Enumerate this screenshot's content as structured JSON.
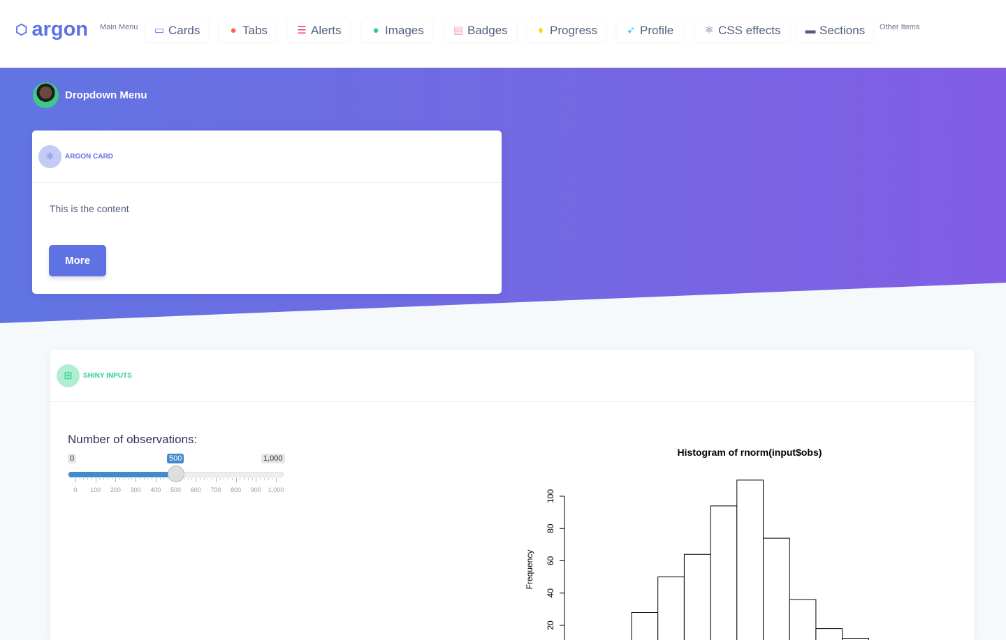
{
  "nav": {
    "brand": "argon",
    "main_menu": "Main Menu",
    "other_items": "Other Items",
    "items": [
      {
        "label": "Cards",
        "icon": "monitor-icon",
        "color": "#5e72e4"
      },
      {
        "label": "Tabs",
        "icon": "planet-icon",
        "color": "#fb6340"
      },
      {
        "label": "Alerts",
        "icon": "bullet-list-icon",
        "color": "#f5365c"
      },
      {
        "label": "Images",
        "icon": "user-circle-icon",
        "color": "#2dce89"
      },
      {
        "label": "Badges",
        "icon": "ui-04-icon",
        "color": "#f3a4b5"
      },
      {
        "label": "Progress",
        "icon": "pin-icon",
        "color": "#ffd600"
      },
      {
        "label": "Profile",
        "icon": "rocket-icon",
        "color": "#11cdef"
      },
      {
        "label": "CSS effects",
        "icon": "atom-icon",
        "color": "#525f7f"
      },
      {
        "label": "Sections",
        "icon": "credit-card-icon",
        "color": "#525f7f"
      }
    ]
  },
  "hero": {
    "dropdown": "Dropdown Menu"
  },
  "argon_card": {
    "title": "ARGON CARD",
    "content": "This is the content",
    "button": "More",
    "accent": "#5e72e4"
  },
  "shiny_card": {
    "title": "SHINY INPUTS",
    "accent": "#2dce89"
  },
  "slider": {
    "label": "Number of observations:",
    "min": "0",
    "max": "1,000",
    "value": "500",
    "value_num": 500,
    "ticks": [
      "0",
      "100",
      "200",
      "300",
      "400",
      "500",
      "600",
      "700",
      "800",
      "900",
      "1,000"
    ]
  },
  "chart_data": {
    "type": "bar",
    "title": "Histogram of rnorm(input$obs)",
    "ylabel": "Frequency",
    "yticks": [
      20,
      40,
      60,
      80,
      100
    ],
    "values": [
      28,
      50,
      64,
      94,
      110,
      74,
      36,
      18,
      12
    ]
  }
}
